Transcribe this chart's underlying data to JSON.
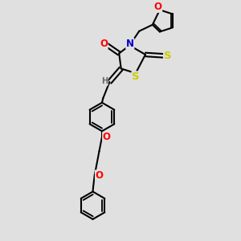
{
  "bg_color": "#e0e0e0",
  "bond_color": "#000000",
  "bond_width": 1.5,
  "atom_colors": {
    "O": "#ff0000",
    "N": "#0000cc",
    "S": "#cccc00",
    "H": "#666666",
    "C": "#000000"
  },
  "font_size": 8.5,
  "fig_size": [
    3.0,
    3.0
  ],
  "dpi": 100
}
